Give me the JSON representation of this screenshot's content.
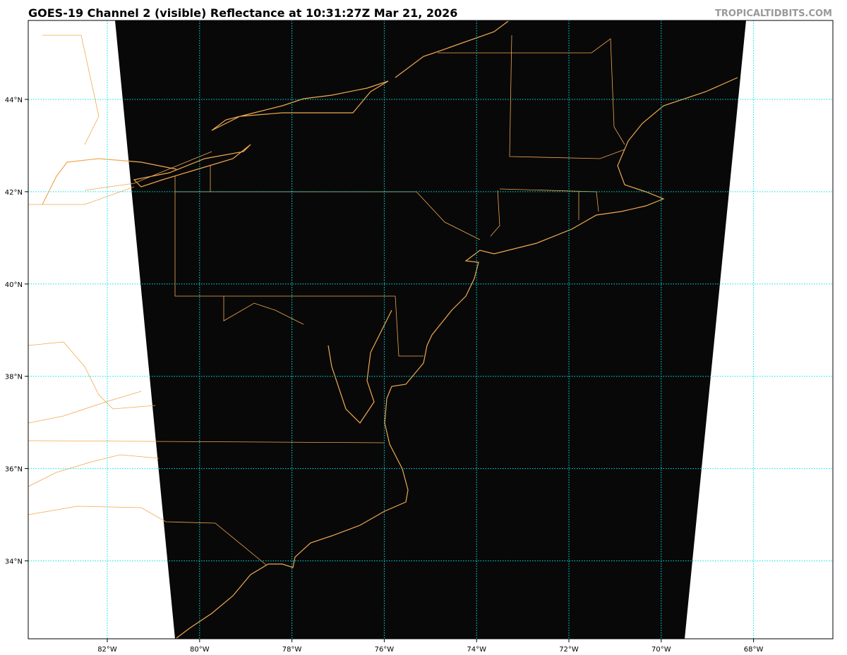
{
  "title": "GOES-19 Channel 2 (visible) Reflectance at 10:31:27Z Mar 21, 2026",
  "credit": "TROPICALTIDBITS.COM",
  "map": {
    "lon_labels": [
      "82°W",
      "80°W",
      "78°W",
      "76°W",
      "74°W",
      "72°W",
      "70°W",
      "68°W"
    ],
    "lat_labels": [
      "44°N",
      "42°N",
      "40°N",
      "38°N",
      "36°N",
      "34°N"
    ],
    "colors": {
      "imagery": "#080808",
      "borders": "#f0a850",
      "gridlines": "#00e5e5",
      "background": "#ffffff"
    }
  }
}
